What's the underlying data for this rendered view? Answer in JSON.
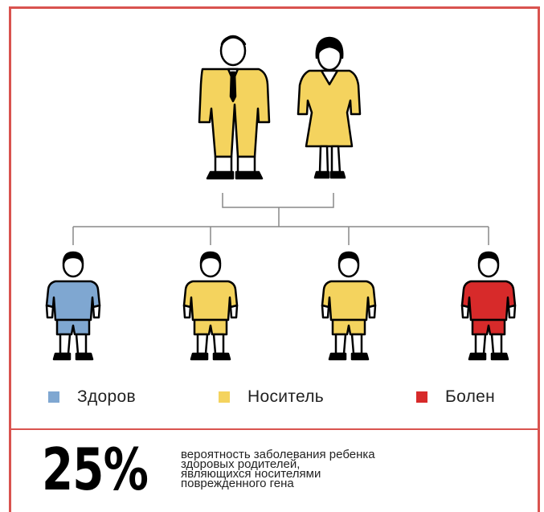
{
  "legend": {
    "healthy": {
      "label": "Здоров",
      "color": "#7fa7d1"
    },
    "carrier": {
      "label": "Носитель",
      "color": "#f4d35e"
    },
    "sick": {
      "label": "Болен",
      "color": "#d72a2a"
    }
  },
  "parents": [
    {
      "role": "father",
      "status": "carrier"
    },
    {
      "role": "mother",
      "status": "carrier"
    }
  ],
  "children": [
    {
      "status": "healthy"
    },
    {
      "status": "carrier"
    },
    {
      "status": "carrier"
    },
    {
      "status": "sick"
    }
  ],
  "stat": {
    "value": "25%",
    "description_lines": [
      "вероятность заболевания ребенка",
      "здоровых родителей,",
      "являющихся носителями",
      "поврежденного гена"
    ]
  },
  "colors": {
    "frame": "#d9534f",
    "outline": "#000000",
    "connector": "#888888"
  }
}
